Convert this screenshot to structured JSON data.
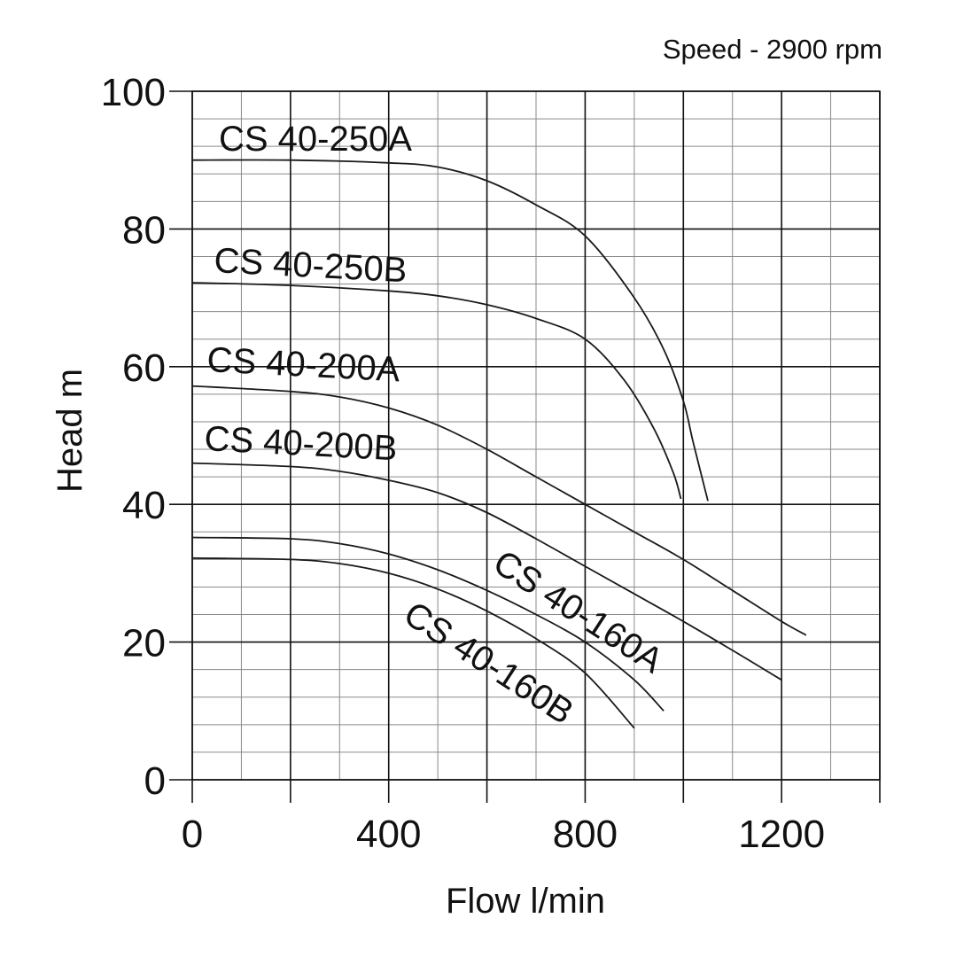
{
  "chart_data": {
    "type": "line",
    "subtitle": "Speed - 2900 rpm",
    "xlabel": "Flow l/min",
    "ylabel": "Head m",
    "xlim": [
      0,
      1400
    ],
    "ylim": [
      0,
      100
    ],
    "x_ticks": [
      0,
      400,
      800,
      1200
    ],
    "y_ticks": [
      0,
      20,
      40,
      60,
      80,
      100
    ],
    "x_minor_step": 100,
    "y_minor_step": 4,
    "grid": true,
    "series": [
      {
        "name": "CS 40-250A",
        "points": [
          [
            0,
            90
          ],
          [
            200,
            90
          ],
          [
            400,
            89.6
          ],
          [
            500,
            89
          ],
          [
            600,
            87
          ],
          [
            700,
            83.5
          ],
          [
            800,
            79
          ],
          [
            900,
            70
          ],
          [
            960,
            62.5
          ],
          [
            1000,
            55
          ],
          [
            1020,
            49
          ],
          [
            1050,
            40.5
          ]
        ]
      },
      {
        "name": "CS 40-250B",
        "points": [
          [
            0,
            72.2
          ],
          [
            200,
            71.8
          ],
          [
            400,
            71
          ],
          [
            500,
            70.3
          ],
          [
            600,
            69
          ],
          [
            700,
            67
          ],
          [
            800,
            64
          ],
          [
            880,
            58
          ],
          [
            940,
            51
          ],
          [
            980,
            44.5
          ],
          [
            995,
            40.8
          ]
        ]
      },
      {
        "name": "CS 40-200A",
        "points": [
          [
            0,
            57.2
          ],
          [
            200,
            56.4
          ],
          [
            300,
            55.6
          ],
          [
            400,
            54
          ],
          [
            500,
            51.5
          ],
          [
            600,
            48
          ],
          [
            700,
            44
          ],
          [
            800,
            40
          ],
          [
            900,
            36
          ],
          [
            1000,
            32
          ],
          [
            1100,
            27.5
          ],
          [
            1200,
            23
          ],
          [
            1250,
            21
          ]
        ]
      },
      {
        "name": "CS 40-200B",
        "points": [
          [
            0,
            46
          ],
          [
            200,
            45.5
          ],
          [
            300,
            44.8
          ],
          [
            400,
            43.5
          ],
          [
            500,
            41.7
          ],
          [
            600,
            38.8
          ],
          [
            700,
            35
          ],
          [
            800,
            31
          ],
          [
            900,
            27
          ],
          [
            1000,
            23
          ],
          [
            1100,
            18.8
          ],
          [
            1200,
            14.5
          ]
        ]
      },
      {
        "name": "CS 40-160A",
        "points": [
          [
            0,
            35.2
          ],
          [
            200,
            35
          ],
          [
            300,
            34.3
          ],
          [
            400,
            32.8
          ],
          [
            500,
            30.5
          ],
          [
            600,
            27.5
          ],
          [
            700,
            24
          ],
          [
            800,
            20
          ],
          [
            900,
            14.5
          ],
          [
            960,
            10
          ]
        ]
      },
      {
        "name": "CS 40-160B",
        "points": [
          [
            0,
            32.2
          ],
          [
            200,
            32
          ],
          [
            300,
            31.4
          ],
          [
            400,
            30
          ],
          [
            500,
            27.7
          ],
          [
            600,
            24.5
          ],
          [
            700,
            20.5
          ],
          [
            800,
            15.5
          ],
          [
            900,
            7.5
          ]
        ]
      }
    ]
  }
}
